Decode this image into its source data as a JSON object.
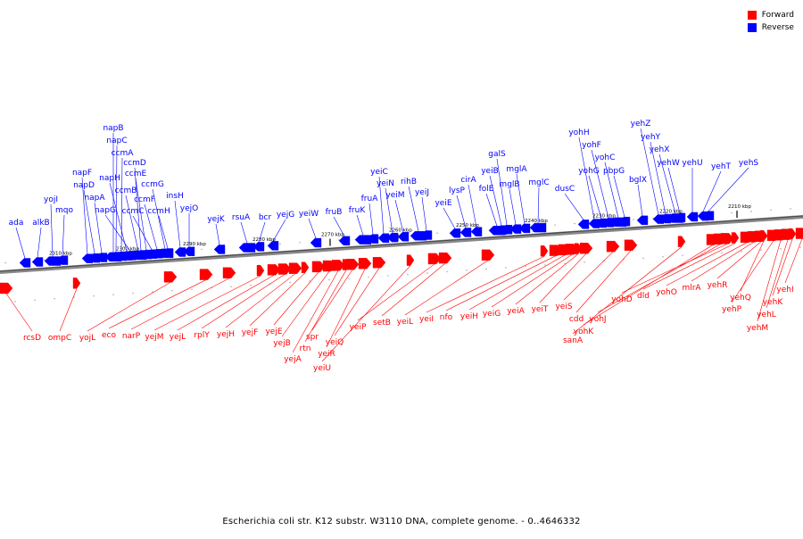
{
  "caption": "Escherichia coli str. K12 substr. W3110 DNA, complete genome. - 0..4646332",
  "legend": [
    {
      "label": "Forward",
      "color": "#ff0000"
    },
    {
      "label": "Reverse",
      "color": "#0000ff"
    }
  ],
  "colors": {
    "forward": "#ff0000",
    "reverse": "#0000ff",
    "axis": "#555555"
  },
  "scale_ticks": [
    "2310 kbp",
    "2300 kbp",
    "2290 kbp",
    "2280 kbp",
    "2270 kbp",
    "2260 kbp",
    "2250 kbp",
    "2240 kbp",
    "2230 kbp",
    "2220 kbp",
    "2210 kbp"
  ],
  "reverse_genes": [
    "ada",
    "alkB",
    "yojI",
    "mqo",
    "napF",
    "napD",
    "napA",
    "napB",
    "napC",
    "ccmA",
    "napH",
    "napG",
    "ccmB",
    "ccmD",
    "ccmE",
    "ccmC",
    "ccmF",
    "ccmG",
    "ccmH",
    "insH",
    "yejO",
    "yejK",
    "rsuA",
    "bcr",
    "yejG",
    "yeiW",
    "fruB",
    "fruK",
    "fruA",
    "yeiC",
    "yeiN",
    "yeiM",
    "rihB",
    "yeiJ",
    "yeiE",
    "lysP",
    "cirA",
    "folE",
    "yeiB",
    "galS",
    "mglB",
    "mglA",
    "mglC",
    "dusC",
    "yohH",
    "yohG",
    "yohF",
    "yohC",
    "pbpG",
    "bglX",
    "yehZ",
    "yehY",
    "yehX",
    "yehW",
    "yehU",
    "yehT",
    "yehS"
  ],
  "forward_genes": [
    "rcsD",
    "ompC",
    "yojL",
    "eco",
    "narP",
    "yejM",
    "yejL",
    "rplY",
    "yejH",
    "yejF",
    "yejE",
    "yejB",
    "yejA",
    "rtn",
    "spr",
    "yeiR",
    "yeiQ",
    "yeiU",
    "yeiP",
    "setB",
    "yeiL",
    "yeiI",
    "nfo",
    "yeiH",
    "yeiG",
    "yeiA",
    "yeiT",
    "yeiS",
    "cdd",
    "sanA",
    "yohK",
    "yohJ",
    "yohD",
    "dld",
    "yohO",
    "mlrA",
    "yehR",
    "yehQ",
    "yehP",
    "yehM",
    "yehL",
    "yehK",
    "yehI"
  ]
}
